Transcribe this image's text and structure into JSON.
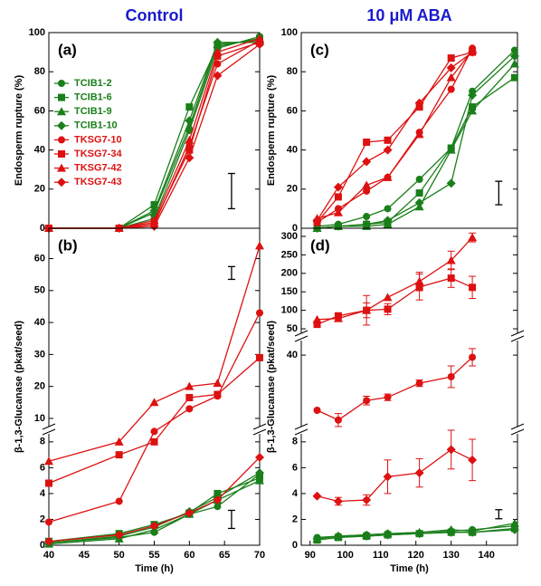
{
  "chart_data": [
    {
      "type": "line",
      "title": "Control",
      "panel": "(a)",
      "ylabel": "Endosperm rupture (%)",
      "x": [
        40,
        50,
        55,
        60,
        64,
        70
      ],
      "xlim": [
        40,
        70
      ],
      "ylim": [
        0,
        100
      ],
      "yticks": [
        0,
        20,
        40,
        60,
        80,
        100
      ],
      "legend": "upper-left",
      "series": [
        {
          "name": "TCIB1-2",
          "color": "#1a7f1a",
          "marker": "circle",
          "values": [
            0,
            0,
            5,
            50,
            92,
            98
          ]
        },
        {
          "name": "TCIB1-6",
          "color": "#1a7f1a",
          "marker": "square",
          "values": [
            0,
            0,
            12,
            62,
            93,
            97
          ]
        },
        {
          "name": "TCIB1-9",
          "color": "#1a7f1a",
          "marker": "triangle",
          "values": [
            0,
            0,
            8,
            52,
            94,
            96
          ]
        },
        {
          "name": "TCIB1-10",
          "color": "#1a7f1a",
          "marker": "diamond",
          "values": [
            0,
            0,
            9,
            55,
            95,
            95
          ]
        },
        {
          "name": "TKSG7-10",
          "color": "#dd1111",
          "marker": "circle",
          "values": [
            0,
            0,
            2,
            42,
            84,
            96
          ]
        },
        {
          "name": "TKSG7-34",
          "color": "#dd1111",
          "marker": "square",
          "values": [
            0,
            0,
            3,
            40,
            88,
            95
          ]
        },
        {
          "name": "TKSG7-42",
          "color": "#dd1111",
          "marker": "triangle",
          "values": [
            0,
            0,
            4,
            45,
            90,
            97
          ]
        },
        {
          "name": "TKSG7-43",
          "color": "#dd1111",
          "marker": "diamond",
          "values": [
            0,
            0,
            1,
            36,
            78,
            94
          ]
        }
      ],
      "error_bars": [
        {
          "x": 66,
          "value": 19,
          "error": 9
        }
      ]
    },
    {
      "type": "line",
      "panel": "(b)",
      "ylabel": "β-1,3-Glucanase (pkat/seed)",
      "xlabel": "Time (h)",
      "x": [
        40,
        50,
        55,
        60,
        64,
        70
      ],
      "xlim": [
        40,
        70
      ],
      "xticks": [
        40,
        45,
        50,
        55,
        60,
        65,
        70
      ],
      "y_segments": [
        {
          "ylim": [
            0,
            8.9
          ],
          "yticks": [
            0,
            2,
            4,
            6,
            8
          ]
        },
        {
          "ylim": [
            6.3,
            69.5
          ],
          "yticks": [
            10,
            20,
            30,
            40,
            50,
            60
          ]
        }
      ],
      "series": [
        {
          "color": "#1a7f1a",
          "marker": "circle",
          "values": [
            0.2,
            0.6,
            1.0,
            2.4,
            3.0,
            5.5
          ]
        },
        {
          "color": "#1a7f1a",
          "marker": "square",
          "values": [
            0.3,
            0.9,
            1.6,
            2.5,
            4.0,
            5.2
          ]
        },
        {
          "color": "#1a7f1a",
          "marker": "triangle",
          "values": [
            0.1,
            0.5,
            1.2,
            2.4,
            3.5,
            5.0
          ]
        },
        {
          "color": "#1a7f1a",
          "marker": "diamond",
          "values": [
            0.2,
            0.7,
            1.4,
            2.6,
            3.7,
            5.6
          ]
        },
        {
          "color": "#dd1111",
          "marker": "circle",
          "values": [
            1.8,
            3.4,
            8.8,
            13,
            17,
            43
          ]
        },
        {
          "color": "#dd1111",
          "marker": "square",
          "values": [
            4.8,
            7.0,
            8.0,
            16.5,
            17.5,
            29
          ]
        },
        {
          "color": "#dd1111",
          "marker": "triangle",
          "values": [
            6.5,
            8.0,
            15,
            20,
            21,
            64
          ]
        },
        {
          "color": "#dd1111",
          "marker": "diamond",
          "values": [
            0.3,
            0.8,
            1.5,
            2.5,
            3.5,
            6.8
          ]
        }
      ],
      "error_bars": [
        {
          "x": 66,
          "value": 55.5,
          "error": 2
        },
        {
          "x": 66,
          "value": 2.0,
          "error": 0.7
        }
      ]
    },
    {
      "type": "line",
      "title": "10 μM ABA",
      "panel": "(c)",
      "ylabel": "Endosperm rupture (%)",
      "x": [
        92,
        98,
        106,
        112,
        121,
        130,
        136,
        148
      ],
      "xlim": [
        87.5,
        148.8
      ],
      "ylim": [
        0,
        100
      ],
      "yticks": [
        0,
        20,
        40,
        60,
        80,
        100
      ],
      "series": [
        {
          "color": "#1a7f1a",
          "marker": "circle",
          "values": [
            1,
            2,
            6,
            10,
            25,
            41,
            70,
            91
          ]
        },
        {
          "color": "#1a7f1a",
          "marker": "square",
          "values": [
            0,
            1,
            2,
            3,
            18,
            41,
            62,
            77
          ]
        },
        {
          "color": "#1a7f1a",
          "marker": "triangle",
          "values": [
            0,
            1,
            1,
            2,
            11,
            40,
            60,
            84
          ]
        },
        {
          "color": "#1a7f1a",
          "marker": "diamond",
          "values": [
            0,
            1,
            2,
            4,
            13,
            23,
            68,
            88
          ]
        },
        {
          "color": "#dd1111",
          "marker": "circle",
          "values": [
            3,
            10,
            19,
            26,
            49,
            71,
            92,
            null
          ]
        },
        {
          "color": "#dd1111",
          "marker": "square",
          "values": [
            3,
            16,
            44,
            45,
            62,
            87,
            90,
            null
          ]
        },
        {
          "color": "#dd1111",
          "marker": "triangle",
          "values": [
            5,
            8,
            22,
            26,
            48,
            77,
            91,
            null
          ]
        },
        {
          "color": "#dd1111",
          "marker": "diamond",
          "values": [
            4,
            21,
            34,
            40,
            64,
            82,
            90,
            null
          ]
        }
      ],
      "error_bars": [
        {
          "x": 143.5,
          "value": 18,
          "error": 6
        }
      ]
    },
    {
      "type": "line",
      "panel": "(d)",
      "ylabel": "β-1,3-Glucanase (pkat/seed)",
      "xlabel": "Time (h)",
      "x": [
        92,
        98,
        106,
        112,
        121,
        130,
        136,
        148
      ],
      "xlim": [
        87.5,
        148.8
      ],
      "xticks": [
        90,
        100,
        110,
        120,
        130,
        140
      ],
      "y_segments": [
        {
          "ylim": [
            0,
            8.9
          ],
          "yticks": [
            0,
            2,
            4,
            6,
            8
          ]
        },
        {
          "ylim": [
            5.3,
            48.4
          ],
          "yticks": [
            40
          ]
        },
        {
          "ylim": [
            28,
            322
          ],
          "yticks": [
            50,
            100,
            150,
            200,
            250,
            300
          ]
        }
      ],
      "series": [
        {
          "color": "#1a7f1a",
          "marker": "circle",
          "values": [
            0.6,
            0.7,
            0.8,
            0.9,
            0.9,
            1.1,
            1.2,
            1.5
          ]
        },
        {
          "color": "#1a7f1a",
          "marker": "square",
          "values": [
            0.4,
            0.6,
            0.7,
            0.8,
            0.9,
            1.0,
            1.0,
            1.3
          ]
        },
        {
          "color": "#1a7f1a",
          "marker": "triangle",
          "values": [
            0.5,
            0.7,
            0.8,
            0.9,
            1.0,
            1.2,
            1.1,
            1.7
          ]
        },
        {
          "color": "#1a7f1a",
          "marker": "diamond",
          "values": [
            0.5,
            0.7,
            0.7,
            0.8,
            0.9,
            1.0,
            1.0,
            1.2
          ]
        },
        {
          "color": "#dd1111",
          "marker": "circle",
          "values": [
            14.5,
            10,
            19,
            20.5,
            27,
            30,
            39,
            null
          ],
          "errors": [
            null,
            3,
            2,
            1.5,
            1.5,
            5,
            4,
            null
          ]
        },
        {
          "color": "#dd1111",
          "marker": "square",
          "values": [
            62,
            85,
            100,
            103,
            163,
            187,
            162,
            null
          ],
          "errors": [
            null,
            null,
            20,
            15,
            35,
            25,
            30,
            null
          ]
        },
        {
          "color": "#dd1111",
          "marker": "triangle",
          "values": [
            75,
            78,
            100,
            135,
            178,
            235,
            297,
            null
          ],
          "errors": [
            null,
            null,
            40,
            null,
            25,
            25,
            12,
            null
          ]
        },
        {
          "color": "#dd1111",
          "marker": "diamond",
          "values": [
            3.8,
            3.4,
            3.5,
            5.3,
            5.6,
            7.4,
            6.6,
            null
          ],
          "errors": [
            null,
            0.3,
            0.4,
            1.3,
            1.1,
            1.5,
            1.6,
            null
          ]
        }
      ],
      "error_bars": [
        {
          "x": 143.5,
          "value": 2.4,
          "error": 0.35
        }
      ]
    }
  ]
}
